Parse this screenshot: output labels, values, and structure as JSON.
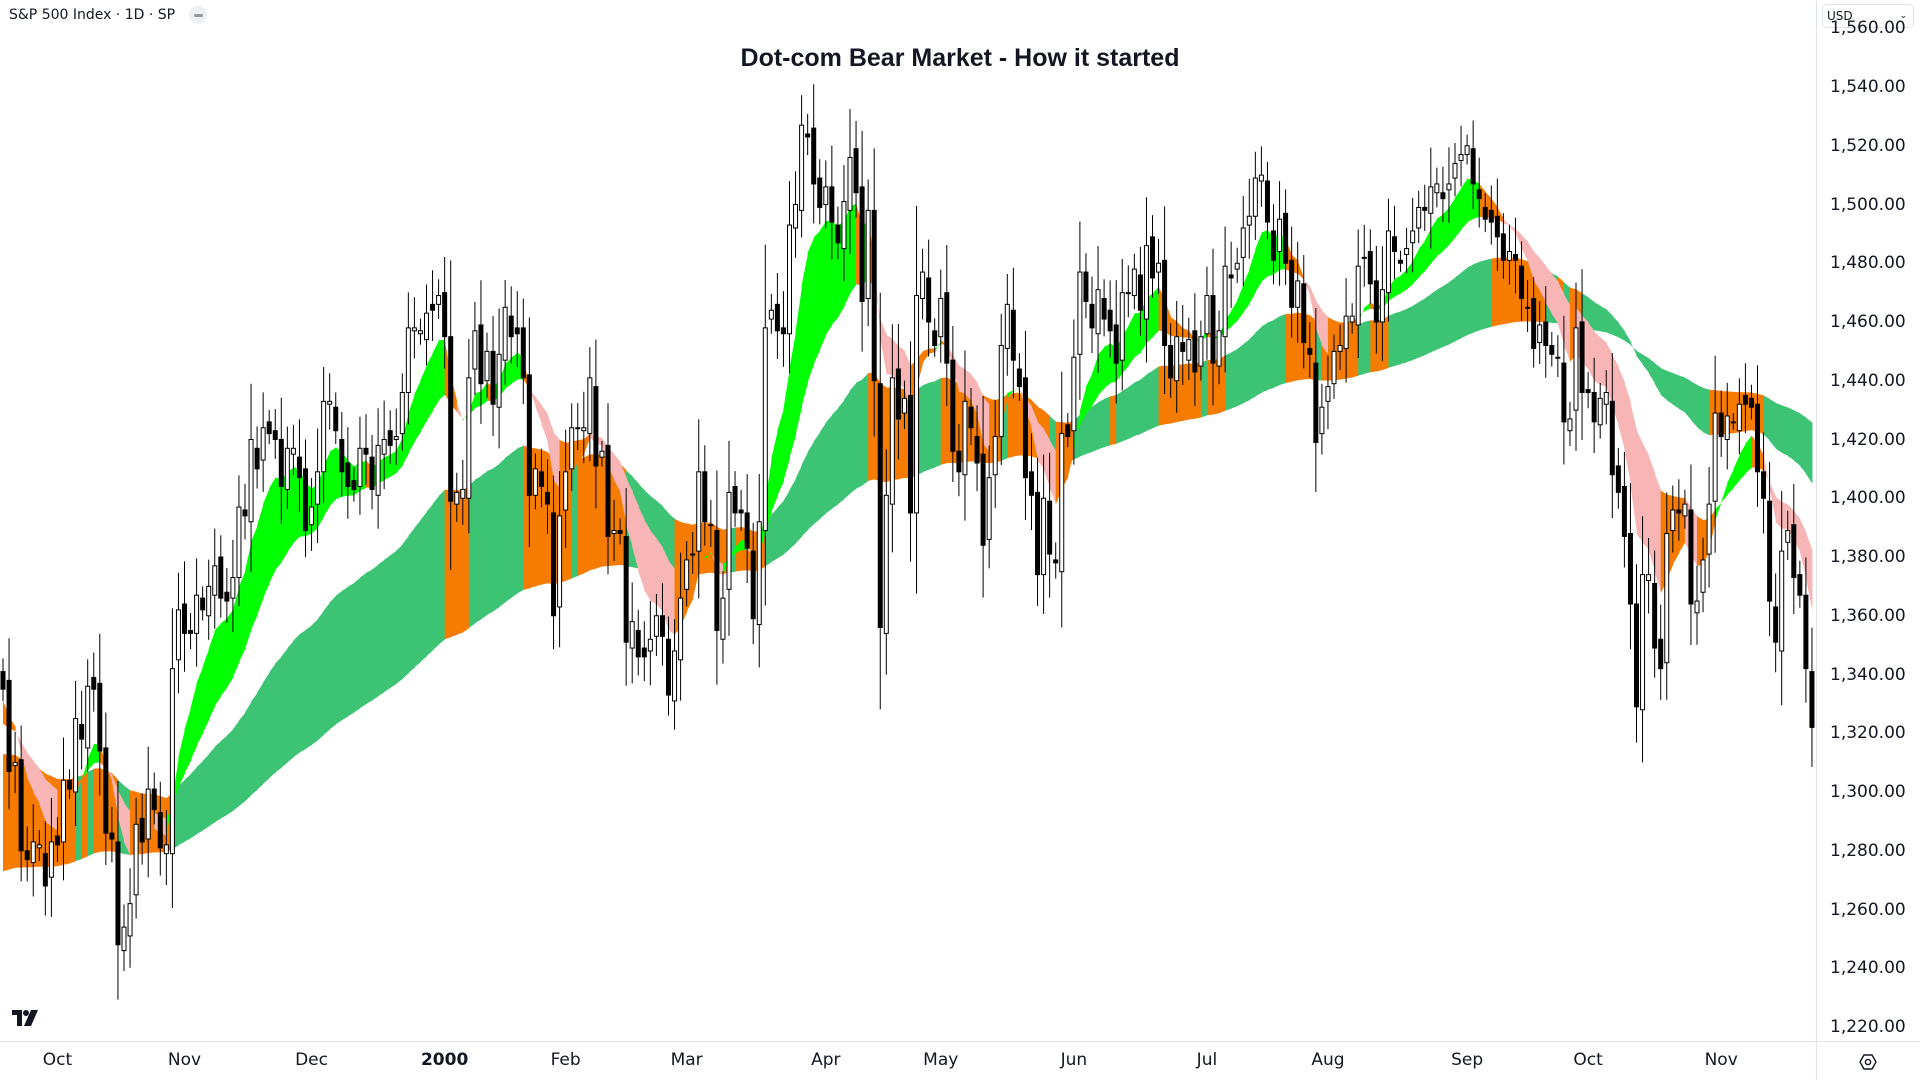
{
  "header": {
    "symbol_label": "S&P 500 Index · 1D · SP",
    "currency": "USD"
  },
  "icons": {
    "collapse": "minus-icon",
    "currency_chevron": "chevron-down-icon",
    "logo": "tradingview-logo",
    "settings": "gear-icon"
  },
  "chart_data": {
    "type": "candlestick",
    "title": "Dot-com Bear Market - How it started",
    "ylim": [
      1210,
      1565
    ],
    "yticks": [
      1220,
      1240,
      1260,
      1280,
      1300,
      1320,
      1340,
      1360,
      1380,
      1400,
      1420,
      1440,
      1460,
      1480,
      1500,
      1520,
      1540,
      1560
    ],
    "grid": false,
    "colors": {
      "up_body": "#ffffff",
      "down_body": "#000000",
      "outline": "#000000",
      "fast_bull": "#00ff00",
      "fast_neutral": "#f57c00",
      "fast_bear": "#f8b5b5",
      "slow_band": "#3cc474",
      "slow_touch": "#f57c00"
    },
    "months": [
      {
        "label": "",
        "closes": [
          1335,
          1307,
          1310,
          1280,
          1277,
          1283,
          1282,
          1268,
          1283
        ]
      },
      {
        "label": "Oct",
        "closes": [
          1282,
          1304,
          1301,
          1325,
          1318,
          1336,
          1335,
          1314,
          1286,
          1284,
          1248,
          1254,
          1262,
          1289,
          1283,
          1301,
          1294,
          1281,
          1282,
          1342,
          1362
        ]
      },
      {
        "label": "Nov",
        "closes": [
          1354,
          1354,
          1367,
          1362,
          1370,
          1377,
          1366,
          1365,
          1373,
          1397,
          1394,
          1420,
          1410,
          1424,
          1422,
          1420,
          1404,
          1417,
          1417,
          1407,
          1389
        ]
      },
      {
        "label": "Dec",
        "closes": [
          1397,
          1409,
          1433,
          1433,
          1423,
          1409,
          1404,
          1403,
          1417,
          1415,
          1403,
          1418,
          1420,
          1418,
          1421,
          1436,
          1458,
          1458,
          1457,
          1463,
          1464,
          1469
        ]
      },
      {
        "label": "2000",
        "year": true,
        "closes": [
          1455,
          1399,
          1402,
          1403,
          1441,
          1457,
          1439,
          1450,
          1432,
          1449,
          1465,
          1455,
          1456,
          1441,
          1401,
          1410,
          1404,
          1398,
          1360,
          1394
        ]
      },
      {
        "label": "Feb",
        "closes": [
          1409,
          1424,
          1424,
          1424,
          1441,
          1411,
          1416,
          1387,
          1389,
          1388,
          1351,
          1358,
          1346,
          1346,
          1352,
          1360,
          1353,
          1333,
          1348,
          1366
        ]
      },
      {
        "label": "Mar",
        "closes": [
          1379,
          1381,
          1409,
          1392,
          1391,
          1355,
          1366,
          1402,
          1395,
          1395,
          1383,
          1359,
          1392,
          1458,
          1464,
          1457,
          1456,
          1493,
          1500,
          1527,
          1523,
          1507,
          1499
        ]
      },
      {
        "label": "Apr",
        "closes": [
          1506,
          1494,
          1487,
          1501,
          1516,
          1504,
          1467,
          1498,
          1440,
          1356,
          1401,
          1441,
          1427,
          1434,
          1395,
          1469,
          1477,
          1460,
          1452
        ]
      },
      {
        "label": "May",
        "closes": [
          1468,
          1446,
          1416,
          1409,
          1433,
          1424,
          1412,
          1384,
          1407,
          1421,
          1452,
          1466,
          1447,
          1438,
          1407,
          1401,
          1374,
          1400,
          1381,
          1378,
          1422,
          1421
        ]
      },
      {
        "label": "Jun",
        "closes": [
          1448,
          1477,
          1467,
          1458,
          1471,
          1461,
          1457,
          1446,
          1470,
          1470,
          1478,
          1464,
          1486,
          1475,
          1480,
          1452,
          1441,
          1455,
          1450,
          1454,
          1443,
          1455
        ]
      },
      {
        "label": "Jul",
        "closes": [
          1469,
          1446,
          1457,
          1479,
          1475,
          1480,
          1492,
          1496,
          1509,
          1510,
          1494,
          1481,
          1495,
          1480,
          1465,
          1474,
          1453,
          1449,
          1419,
          1431
        ]
      },
      {
        "label": "Aug",
        "closes": [
          1438,
          1450,
          1452,
          1462,
          1462,
          1479,
          1482,
          1473,
          1460,
          1471,
          1491,
          1484,
          1480,
          1485,
          1491,
          1499,
          1498,
          1506,
          1507,
          1502,
          1507,
          1514,
          1517
        ]
      },
      {
        "label": "Sep",
        "closes": [
          1520,
          1507,
          1502,
          1495,
          1494,
          1489,
          1481,
          1484,
          1481,
          1468,
          1465,
          1451,
          1459,
          1452,
          1449,
          1448,
          1426,
          1427,
          1458,
          1436
        ]
      },
      {
        "label": "Oct",
        "closes": [
          1436,
          1426,
          1434,
          1436,
          1408,
          1402,
          1387,
          1364,
          1329,
          1374,
          1374,
          1349,
          1342,
          1388,
          1396,
          1395,
          1398,
          1364,
          1365,
          1379,
          1398,
          1429
        ]
      },
      {
        "label": "Nov",
        "closes": [
          1421,
          1428,
          1426,
          1432,
          1432,
          1431,
          1409,
          1400,
          1365,
          1351,
          1382,
          1389,
          1373,
          1367,
          1342,
          1322
        ]
      }
    ]
  }
}
